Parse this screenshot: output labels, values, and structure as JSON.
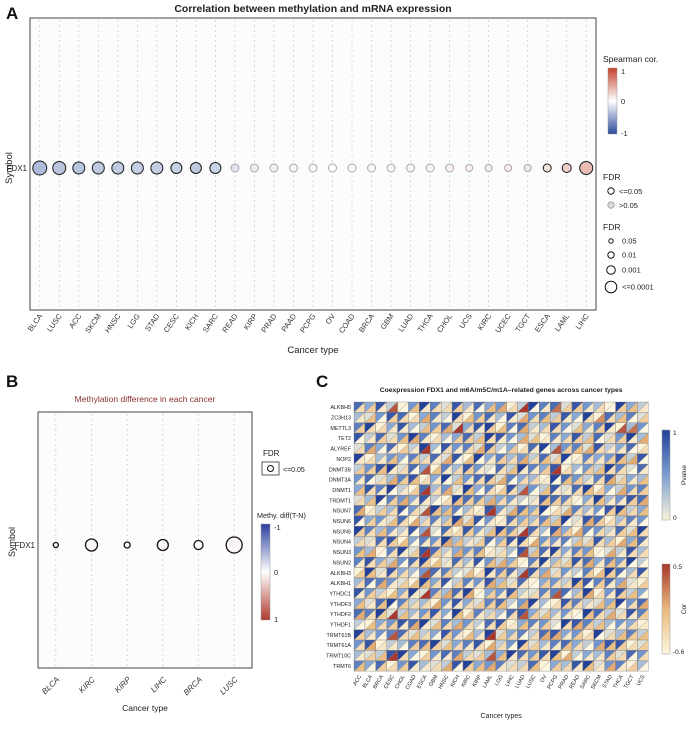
{
  "panels": {
    "a_label": "A",
    "b_label": "B",
    "c_label": "C"
  },
  "colors": {
    "spearman_neg": "#2c4b9e",
    "spearman_mid": "#ffffff",
    "spearman_pos": "#c2402a",
    "sig_stroke": "#1a1a1a",
    "nonsig_stroke": "#a8a8a8",
    "grid_dash": "#c9c9c9",
    "box_stroke": "#444444",
    "plot_bg": "#fcfcfc",
    "panel_b_title": "#8b3030",
    "pvalue_low": "#faf3da",
    "pvalue_mid": "#7c9fd3",
    "pvalue_high": "#24419a",
    "cor_low": "#fdf6e0",
    "cor_mid": "#e8b97c",
    "cor_high": "#a8392e",
    "methy_neg": "#2c3f9e",
    "methy_mid": "#ffffff",
    "methy_pos": "#b03a2e"
  },
  "chart_data": [
    {
      "id": "panel_a",
      "type": "scatter",
      "title": "Correlation between methylation and mRNA expression",
      "xlabel": "Cancer type",
      "ylabel": "Symbol",
      "row_label": "FDX1",
      "legend": {
        "color_title": "Spearman cor.",
        "color_ticks": [
          "1",
          "0",
          "-1"
        ],
        "fdr_fill_title": "FDR",
        "fdr_fill_items": [
          "<=0.05",
          ">0.05"
        ],
        "fdr_size_title": "FDR",
        "fdr_size_items": [
          "0.05",
          "0.01",
          "0.001",
          "<=0.0001"
        ]
      },
      "categories": [
        "BLCA",
        "LUSC",
        "ACC",
        "SKCM",
        "HNSC",
        "LGG",
        "STAD",
        "CESC",
        "KICH",
        "SARC",
        "READ",
        "KIRP",
        "PRAD",
        "PAAD",
        "PCPG",
        "OV",
        "COAD",
        "BRCA",
        "GBM",
        "LUAD",
        "THCA",
        "CHOL",
        "UCS",
        "KIRC",
        "UCEC",
        "TGCT",
        "ESCA",
        "LAML",
        "LIHC"
      ],
      "spearman": [
        -0.38,
        -0.33,
        -0.33,
        -0.3,
        -0.3,
        -0.28,
        -0.28,
        -0.26,
        -0.3,
        -0.25,
        -0.15,
        -0.1,
        -0.08,
        -0.05,
        -0.03,
        0.0,
        0.02,
        0.03,
        0.05,
        0.05,
        0.06,
        0.08,
        0.08,
        0.1,
        0.1,
        0.12,
        0.15,
        0.25,
        0.35
      ],
      "dot_radius": [
        7,
        6.5,
        6,
        6,
        6,
        6,
        6,
        5.5,
        5.5,
        5.5,
        4,
        4,
        4,
        4,
        4,
        4,
        4,
        4,
        4,
        4,
        4,
        4,
        3.5,
        3.5,
        3.5,
        3.5,
        4,
        4.5,
        6.5
      ],
      "significant": [
        true,
        true,
        true,
        true,
        true,
        true,
        true,
        true,
        true,
        true,
        false,
        false,
        false,
        false,
        false,
        false,
        false,
        false,
        false,
        false,
        false,
        false,
        false,
        false,
        false,
        false,
        true,
        true,
        true
      ]
    },
    {
      "id": "panel_b",
      "type": "scatter",
      "title": "Methylation difference in each cancer",
      "xlabel": "Cancer type",
      "ylabel": "Symbol",
      "row_label": "FDX1",
      "legend": {
        "fdr_title": "FDR",
        "fdr_item": "<=0.05",
        "color_title": "Methy. diff(T-N)",
        "color_ticks": [
          "-1",
          "0",
          "1"
        ]
      },
      "categories": [
        "BLCA",
        "KIRC",
        "KIRP",
        "LIHC",
        "BRCA",
        "LUSC"
      ],
      "methy_diff": [
        0.02,
        0.04,
        0.02,
        0.05,
        0.03,
        0.05
      ],
      "dot_radius": [
        2.5,
        6,
        3,
        5.5,
        4.5,
        8
      ]
    },
    {
      "id": "panel_c",
      "type": "heatmap",
      "title": "Coexpression FDX1 and m6A/m5C/m1A–related genes across cancer types",
      "xlabel": "Cancer types",
      "legend": {
        "pvalue_title": "Pvalue",
        "pvalue_ticks": [
          "1",
          "0"
        ],
        "cor_title": "Cor",
        "cor_ticks": [
          "0.5",
          "-0.6"
        ]
      },
      "genes": [
        "ALKBH5",
        "ZC3H13",
        "METTL3",
        "TET2",
        "ALYREF",
        "NOP2",
        "DNMT3B",
        "DNMT3A",
        "DNMT1",
        "TRDMT1",
        "NSUN7",
        "NSUN6",
        "NSUN5",
        "NSUN4",
        "NSUN3",
        "NSUN2",
        "ALKBH3",
        "ALKBH1",
        "YTHDC1",
        "YTHDF3",
        "YTHDF2",
        "YTHDF1",
        "TRMT61B",
        "TRMT61A",
        "TRMT10C",
        "TRMT6"
      ],
      "cancer_types": [
        "ACC",
        "BLCA",
        "BRCA",
        "CESC",
        "CHOL",
        "COAD",
        "ESCA",
        "GBM",
        "HNSC",
        "KICH",
        "KIRC",
        "KIRP",
        "LAML",
        "LGG",
        "LIHC",
        "LUAD",
        "LUSC",
        "OV",
        "PCPG",
        "PRAD",
        "READ",
        "SARC",
        "SKCM",
        "STAD",
        "THCA",
        "TGCT",
        "UCS"
      ],
      "value_encoding": "each char digit d (0-9): pvalue = d/9 ; cor = -0.6 + (d/9)*1.1 (values estimated from figure)",
      "pvalue_rows": [
        "748205961837450296718530942",
        "315870462905738156284907361",
        "690483257148906723851469035",
        "827159603472985310648271593",
        "164702938561824079356182470",
        "903546271809463527190645828",
        "258917406385172964803529617",
        "571368049257816430975268143",
        "486920735194608352817904256",
        "139654820976345218760493587",
        "702385194630852749016358924",
        "845170263918507436291870365",
        "963528417085296173840652719",
        "217804659321748905562183047",
        "530691872456013827946501283",
        "684257901738524069318746592",
        "091843576210967384152609738",
        "376510948265831704529867410",
        "852049163790458216673905824",
        "417962305841672593086214957",
        "769123584906237841350972186",
        "204587916352780465198623540",
        "935671248503914627845091362",
        "580236791468025913674258801",
        "312894057621349758902436175",
        "647058312894561270438915603"
      ],
      "cor_rows": [
        "231804122310452901733120341",
        "140322510243101524310262403",
        "322110435921340512204131870",
        "013245120334210541123402315",
        "250131902125303210834521102",
        "121403215040132524301213450",
        "334120841231024113920342201",
        "102534210412350221043125314",
        "421013925140232804112430523",
        "240351102433521014320241135",
        "513202844021915430252103424",
        "031425213540112324401532210",
        "324110802231443920535021342",
        "212340125413031252104323541",
        "450213931524120841213405122",
        "123502341210453021332514200",
        "341220813042131925210343021",
        "205134420311542103224031513",
        "132421935250314122803521340",
        "414032251123340510232144025",
        "523941320431202834110425213",
        "042315142520231413025340121",
        "310824203141932025513202434",
        "251103434212520331142054323",
        "134920311523841232450113202",
        "403231125034512240321415130"
      ]
    }
  ]
}
